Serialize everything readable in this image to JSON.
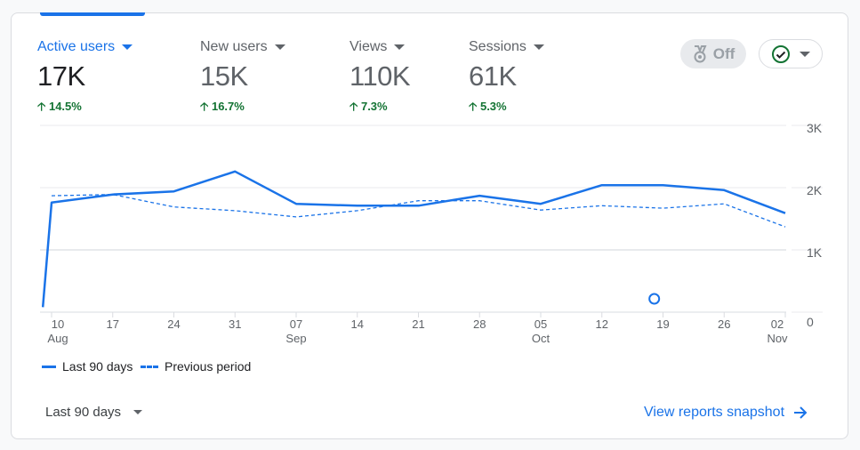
{
  "metrics": [
    {
      "label": "Active users",
      "value": "17K",
      "delta": "14.5%",
      "active": true
    },
    {
      "label": "New users",
      "value": "15K",
      "delta": "16.7%",
      "active": false
    },
    {
      "label": "Views",
      "value": "110K",
      "delta": "7.3%",
      "active": false
    },
    {
      "label": "Sessions",
      "value": "61K",
      "delta": "5.3%",
      "active": false
    }
  ],
  "insights_toggle": {
    "label": "Off",
    "icon": "medal-icon"
  },
  "status_dropdown": {
    "icon": "check-circle-icon"
  },
  "chart_data": {
    "type": "line",
    "y_ticks": [
      "0",
      "1K",
      "2K",
      "3K"
    ],
    "ylim": [
      0,
      3000
    ],
    "grid": true,
    "x_ticks": [
      {
        "day": "10",
        "month": "Aug"
      },
      {
        "day": "17",
        "month": ""
      },
      {
        "day": "24",
        "month": ""
      },
      {
        "day": "31",
        "month": ""
      },
      {
        "day": "07",
        "month": "Sep"
      },
      {
        "day": "14",
        "month": ""
      },
      {
        "day": "21",
        "month": ""
      },
      {
        "day": "28",
        "month": ""
      },
      {
        "day": "05",
        "month": "Oct"
      },
      {
        "day": "12",
        "month": ""
      },
      {
        "day": "19",
        "month": ""
      },
      {
        "day": "26",
        "month": ""
      },
      {
        "day": "02",
        "month": "Nov"
      }
    ],
    "x": [
      "Aug 09",
      "Aug 10",
      "Aug 17",
      "Aug 24",
      "Aug 31",
      "Sep 07",
      "Sep 14",
      "Sep 21",
      "Sep 28",
      "Oct 05",
      "Oct 12",
      "Oct 19",
      "Oct 26",
      "Nov 02"
    ],
    "series": [
      {
        "name": "Last 90 days",
        "style": "solid",
        "color": "#1a73e8",
        "values": [
          80,
          1760,
          1890,
          1940,
          2260,
          1740,
          1710,
          1710,
          1870,
          1740,
          2040,
          2040,
          1960,
          1590
        ]
      },
      {
        "name": "Previous period",
        "style": "dashed",
        "color": "#1a73e8",
        "values": [
          null,
          1870,
          1890,
          1690,
          1630,
          1530,
          1630,
          1790,
          1790,
          1640,
          1710,
          1670,
          1740,
          1370
        ]
      }
    ],
    "annotation": {
      "date": "Oct 18",
      "icon": "annotation-circle-icon"
    },
    "legend_position": "bottom-left"
  },
  "footer": {
    "range_label": "Last 90 days",
    "snapshot_link": "View reports snapshot"
  }
}
